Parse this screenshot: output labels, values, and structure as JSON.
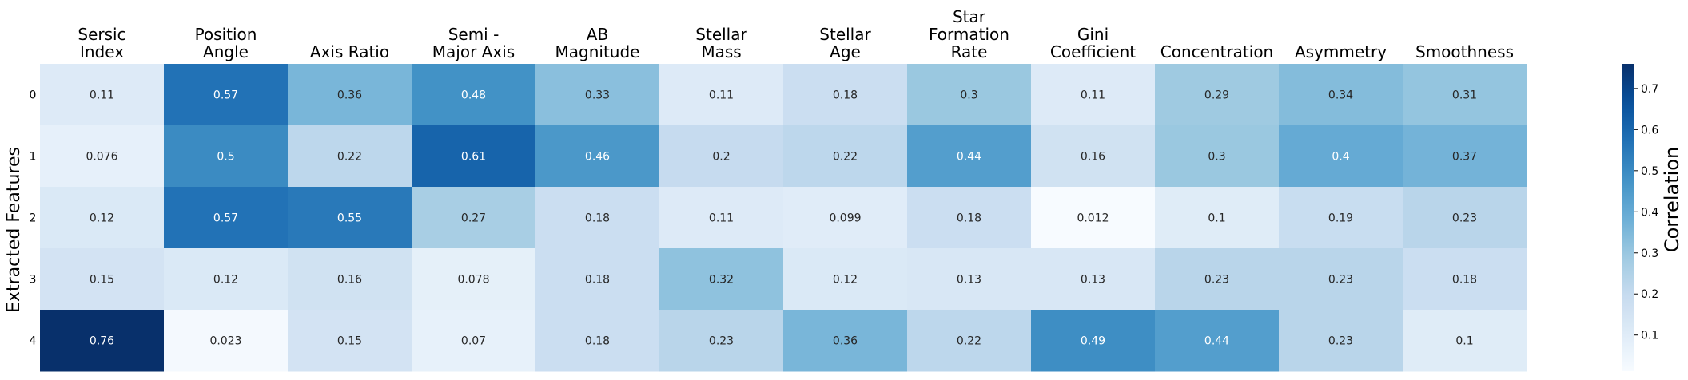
{
  "chart_data": {
    "type": "heatmap",
    "ylabel": "Extracted Features",
    "colorbar_label": "Correlation",
    "columns": [
      [
        "Sersic",
        "Index"
      ],
      [
        "Position",
        "Angle"
      ],
      [
        "Axis Ratio"
      ],
      [
        "Semi -",
        "Major Axis"
      ],
      [
        "AB",
        "Magnitude"
      ],
      [
        "Stellar",
        "Mass"
      ],
      [
        "Stellar",
        "Age"
      ],
      [
        "Star",
        "Formation",
        "Rate"
      ],
      [
        "Gini",
        "Coefficient"
      ],
      [
        "Concentration"
      ],
      [
        "Asymmetry"
      ],
      [
        "Smoothness"
      ]
    ],
    "rows": [
      "0",
      "1",
      "2",
      "3",
      "4"
    ],
    "values": [
      [
        0.11,
        0.57,
        0.36,
        0.48,
        0.33,
        0.11,
        0.18,
        0.3,
        0.11,
        0.29,
        0.34,
        0.31
      ],
      [
        0.076,
        0.5,
        0.22,
        0.61,
        0.46,
        0.2,
        0.22,
        0.44,
        0.16,
        0.3,
        0.4,
        0.37
      ],
      [
        0.12,
        0.57,
        0.55,
        0.27,
        0.18,
        0.11,
        0.099,
        0.18,
        0.012,
        0.1,
        0.19,
        0.23
      ],
      [
        0.15,
        0.12,
        0.16,
        0.078,
        0.18,
        0.32,
        0.12,
        0.13,
        0.13,
        0.23,
        0.23,
        0.18
      ],
      [
        0.76,
        0.023,
        0.15,
        0.07,
        0.18,
        0.23,
        0.36,
        0.22,
        0.49,
        0.44,
        0.23,
        0.1
      ]
    ],
    "value_labels": [
      [
        "0.11",
        "0.57",
        "0.36",
        "0.48",
        "0.33",
        "0.11",
        "0.18",
        "0.3",
        "0.11",
        "0.29",
        "0.34",
        "0.31"
      ],
      [
        "0.076",
        "0.5",
        "0.22",
        "0.61",
        "0.46",
        "0.2",
        "0.22",
        "0.44",
        "0.16",
        "0.3",
        "0.4",
        "0.37"
      ],
      [
        "0.12",
        "0.57",
        "0.55",
        "0.27",
        "0.18",
        "0.11",
        "0.099",
        "0.18",
        "0.012",
        "0.1",
        "0.19",
        "0.23"
      ],
      [
        "0.15",
        "0.12",
        "0.16",
        "0.078",
        "0.18",
        "0.32",
        "0.12",
        "0.13",
        "0.13",
        "0.23",
        "0.23",
        "0.18"
      ],
      [
        "0.76",
        "0.023",
        "0.15",
        "0.07",
        "0.18",
        "0.23",
        "0.36",
        "0.22",
        "0.49",
        "0.44",
        "0.23",
        "0.1"
      ]
    ],
    "colorscale": "Blues",
    "vmin": 0.012,
    "vmax": 0.76,
    "colorbar_ticks": [
      {
        "value": 0.1,
        "label": "0.1"
      },
      {
        "value": 0.2,
        "label": "0.2"
      },
      {
        "value": 0.3,
        "label": "0.3"
      },
      {
        "value": 0.4,
        "label": "0.4"
      },
      {
        "value": 0.5,
        "label": "0.5"
      },
      {
        "value": 0.6,
        "label": "0.6"
      },
      {
        "value": 0.7,
        "label": "0.7"
      }
    ]
  }
}
